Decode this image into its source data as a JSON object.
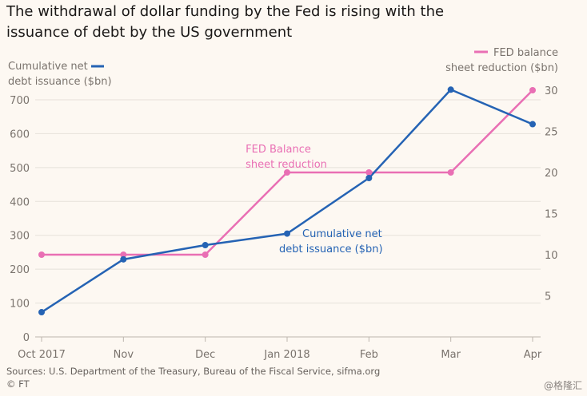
{
  "title": "The withdrawal of dollar funding by the Fed is rising with the\nissuance of debt by the US government",
  "source": "Sources: U.S. Department of the Treasury, Bureau of the Fiscal Service, sifma.org",
  "copyright": "© FT",
  "watermark": "@格隆汇",
  "colors": {
    "debt": "#2563b4",
    "fed": "#e96fb4",
    "grid": "#e6e1da",
    "axis": "#7a736d"
  },
  "chart_data": {
    "type": "line",
    "categories": [
      "Oct 2017",
      "Nov",
      "Dec",
      "Jan 2018",
      "Feb",
      "Mar",
      "Apr"
    ],
    "series": [
      {
        "name": "Cumulative net debt issuance ($bn)",
        "axis": "left",
        "values": [
          73,
          229,
          271,
          305,
          469,
          730,
          628
        ],
        "legend_lines": [
          "Cumulative net",
          "debt issuance ($bn)"
        ],
        "label_lines": [
          "Cumulative net",
          "debt issuance ($bn)"
        ]
      },
      {
        "name": "FED balance sheet reduction ($bn)",
        "axis": "right",
        "values": [
          10,
          10,
          10,
          20,
          20,
          20,
          30
        ],
        "legend_lines": [
          "FED balance",
          "sheet reduction ($bn)"
        ],
        "label_lines": [
          "FED Balance",
          "sheet reduction"
        ]
      }
    ],
    "y_left": {
      "ylim": [
        0,
        700
      ],
      "ticks": [
        0,
        100,
        200,
        300,
        400,
        500,
        600,
        700
      ]
    },
    "y_right": {
      "ylim": [
        0,
        30
      ],
      "ticks": [
        5,
        10,
        15,
        20,
        25,
        30
      ]
    }
  }
}
